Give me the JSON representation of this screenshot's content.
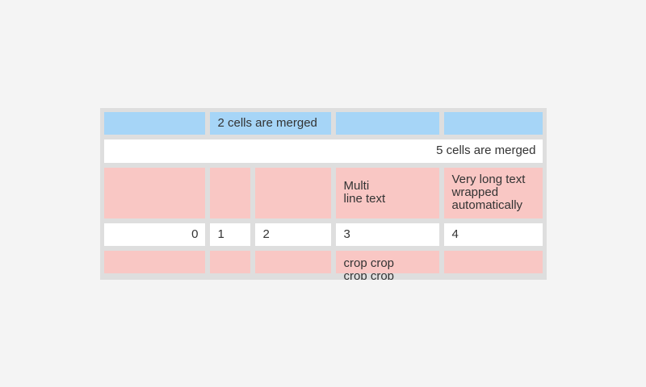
{
  "page": {
    "background": "#f4f4f4"
  },
  "table": {
    "background": "#dedede",
    "colors": {
      "header_blue": "#a6d5f7",
      "pink": "#f9c7c4",
      "white": "#ffffff",
      "text": "#333333"
    },
    "rows": [
      {
        "cells": [
          {
            "text": ""
          },
          {
            "text": "2 cells are merged",
            "merged": 2
          },
          {
            "text": ""
          },
          {
            "text": ""
          }
        ]
      },
      {
        "cells": [
          {
            "text": "5 cells are merged",
            "merged": 5,
            "align": "right"
          }
        ]
      },
      {
        "cells": [
          {
            "text": ""
          },
          {
            "text": ""
          },
          {
            "text": ""
          },
          {
            "text": "Multi\nline text"
          },
          {
            "text": "Very long text wrapped automatically"
          }
        ]
      },
      {
        "cells": [
          {
            "text": "0",
            "align": "right"
          },
          {
            "text": "1"
          },
          {
            "text": "2"
          },
          {
            "text": "3"
          },
          {
            "text": "4"
          }
        ]
      },
      {
        "cells": [
          {
            "text": ""
          },
          {
            "text": ""
          },
          {
            "text": ""
          },
          {
            "text": "crop crop crop crop",
            "cropped": true
          },
          {
            "text": ""
          }
        ]
      }
    ]
  }
}
